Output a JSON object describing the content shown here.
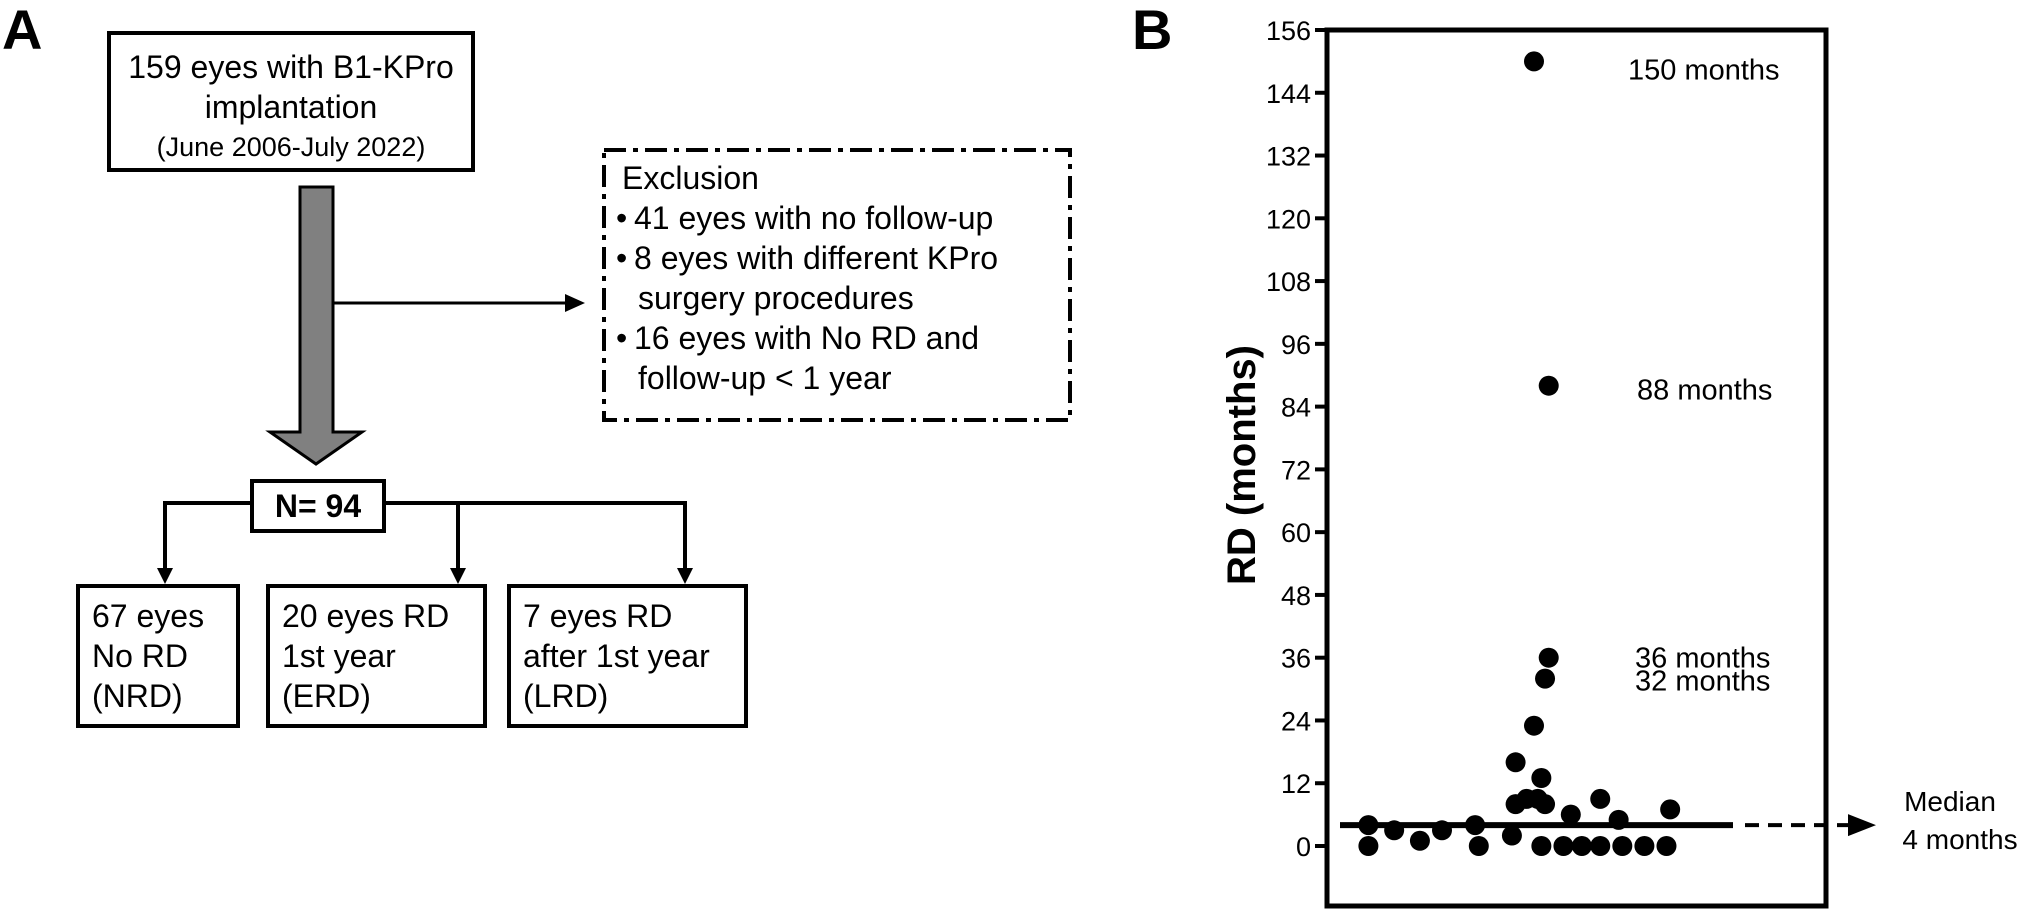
{
  "panel_a": {
    "label": "A",
    "top_box": {
      "line1": "159 eyes with B1-KPro",
      "line2": "implantation",
      "line3": "(June 2006-July 2022)"
    },
    "exclusion": {
      "title": "Exclusion",
      "items": [
        {
          "bullet": "•",
          "line1": "41 eyes with no follow-up",
          "line2": ""
        },
        {
          "bullet": "•",
          "line1": "8 eyes with different KPro",
          "line2": "surgery procedures"
        },
        {
          "bullet": "•",
          "line1": "16 eyes with No RD and",
          "line2": "follow-up < 1 year"
        }
      ]
    },
    "n_box": "N= 94",
    "groups": [
      {
        "line1": "67 eyes",
        "line2": "No RD",
        "line3": "(NRD)"
      },
      {
        "line1": "20 eyes RD",
        "line2": "1st year",
        "line3": "(ERD)"
      },
      {
        "line1": "7 eyes RD",
        "line2": "after 1st year",
        "line3": "(LRD)"
      }
    ]
  },
  "chart_data": {
    "type": "scatter",
    "panel_label": "B",
    "ylabel": "RD (months)",
    "xlabel": "",
    "ylim": [
      -12,
      156
    ],
    "yticks": [
      0,
      12,
      24,
      36,
      48,
      60,
      72,
      84,
      96,
      108,
      120,
      132,
      144,
      156
    ],
    "points": [
      {
        "x": 0.5,
        "y": 150
      },
      {
        "x": 0.54,
        "y": 88
      },
      {
        "x": 0.54,
        "y": 36
      },
      {
        "x": 0.53,
        "y": 32
      },
      {
        "x": 0.5,
        "y": 23
      },
      {
        "x": 0.45,
        "y": 16
      },
      {
        "x": 0.52,
        "y": 13
      },
      {
        "x": 0.48,
        "y": 9
      },
      {
        "x": 0.51,
        "y": 9
      },
      {
        "x": 0.68,
        "y": 9
      },
      {
        "x": 0.45,
        "y": 8
      },
      {
        "x": 0.53,
        "y": 8
      },
      {
        "x": 0.87,
        "y": 7
      },
      {
        "x": 0.6,
        "y": 6
      },
      {
        "x": 0.73,
        "y": 5
      },
      {
        "x": 0.05,
        "y": 4
      },
      {
        "x": 0.34,
        "y": 4
      },
      {
        "x": 0.12,
        "y": 3
      },
      {
        "x": 0.25,
        "y": 3
      },
      {
        "x": 0.44,
        "y": 2
      },
      {
        "x": 0.19,
        "y": 1
      },
      {
        "x": 0.05,
        "y": 0
      },
      {
        "x": 0.35,
        "y": 0
      },
      {
        "x": 0.52,
        "y": 0
      },
      {
        "x": 0.58,
        "y": 0
      },
      {
        "x": 0.63,
        "y": 0
      },
      {
        "x": 0.68,
        "y": 0
      },
      {
        "x": 0.74,
        "y": 0
      },
      {
        "x": 0.8,
        "y": 0
      },
      {
        "x": 0.86,
        "y": 0
      }
    ],
    "median": 4,
    "annotations": [
      {
        "text": "150 months",
        "y": 150
      },
      {
        "text": "88 months",
        "y": 88
      },
      {
        "text": "36 months",
        "y": 36
      },
      {
        "text": "32 months",
        "y": 32
      }
    ],
    "median_label": {
      "line1": "Median",
      "line2": "4 months"
    }
  }
}
